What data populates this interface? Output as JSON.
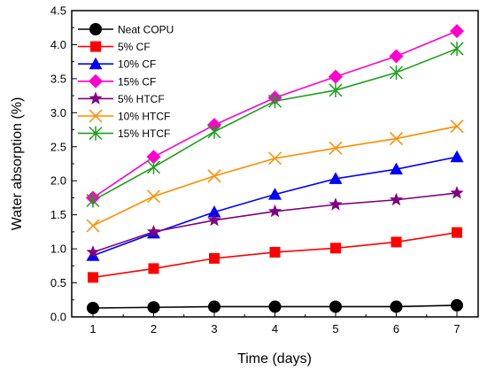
{
  "chart_data": {
    "type": "line",
    "title": "",
    "xlabel": "Time (days)",
    "ylabel": "Water absorption (%)",
    "xlim": [
      0.65,
      7.35
    ],
    "ylim": [
      0,
      4.5
    ],
    "x": [
      1,
      2,
      3,
      4,
      5,
      6,
      7
    ],
    "x_ticks": [
      "1",
      "2",
      "3",
      "4",
      "5",
      "6",
      "7"
    ],
    "y_ticks": [
      "0.0",
      "0.5",
      "1.0",
      "1.5",
      "2.0",
      "2.5",
      "3.0",
      "3.5",
      "4.0",
      "4.5"
    ],
    "grid": false,
    "legend_position": "top-left",
    "series": [
      {
        "name": "Neat COPU",
        "marker": "circle",
        "color": "#000000",
        "values": [
          0.13,
          0.14,
          0.15,
          0.15,
          0.15,
          0.15,
          0.17
        ]
      },
      {
        "name": "5% CF",
        "marker": "square",
        "color": "#ff0000",
        "values": [
          0.58,
          0.71,
          0.86,
          0.95,
          1.01,
          1.1,
          1.24
        ]
      },
      {
        "name": "10% CF",
        "marker": "triangle",
        "color": "#0000ff",
        "values": [
          0.9,
          1.23,
          1.54,
          1.8,
          2.03,
          2.17,
          2.35
        ]
      },
      {
        "name": "15% CF",
        "marker": "diamond",
        "color": "#ff00cc",
        "values": [
          1.75,
          2.35,
          2.82,
          3.22,
          3.53,
          3.83,
          4.2
        ]
      },
      {
        "name": "5% HTCF",
        "marker": "star",
        "color": "#800080",
        "values": [
          0.95,
          1.25,
          1.42,
          1.55,
          1.65,
          1.72,
          1.82
        ]
      },
      {
        "name": "10% HTCF",
        "marker": "x",
        "color": "#ff8c00",
        "values": [
          1.34,
          1.77,
          2.07,
          2.33,
          2.48,
          2.62,
          2.8
        ]
      },
      {
        "name": "15% HTCF",
        "marker": "asterisk",
        "color": "#1e9e1e",
        "values": [
          1.71,
          2.2,
          2.72,
          3.17,
          3.33,
          3.59,
          3.94
        ]
      }
    ]
  }
}
